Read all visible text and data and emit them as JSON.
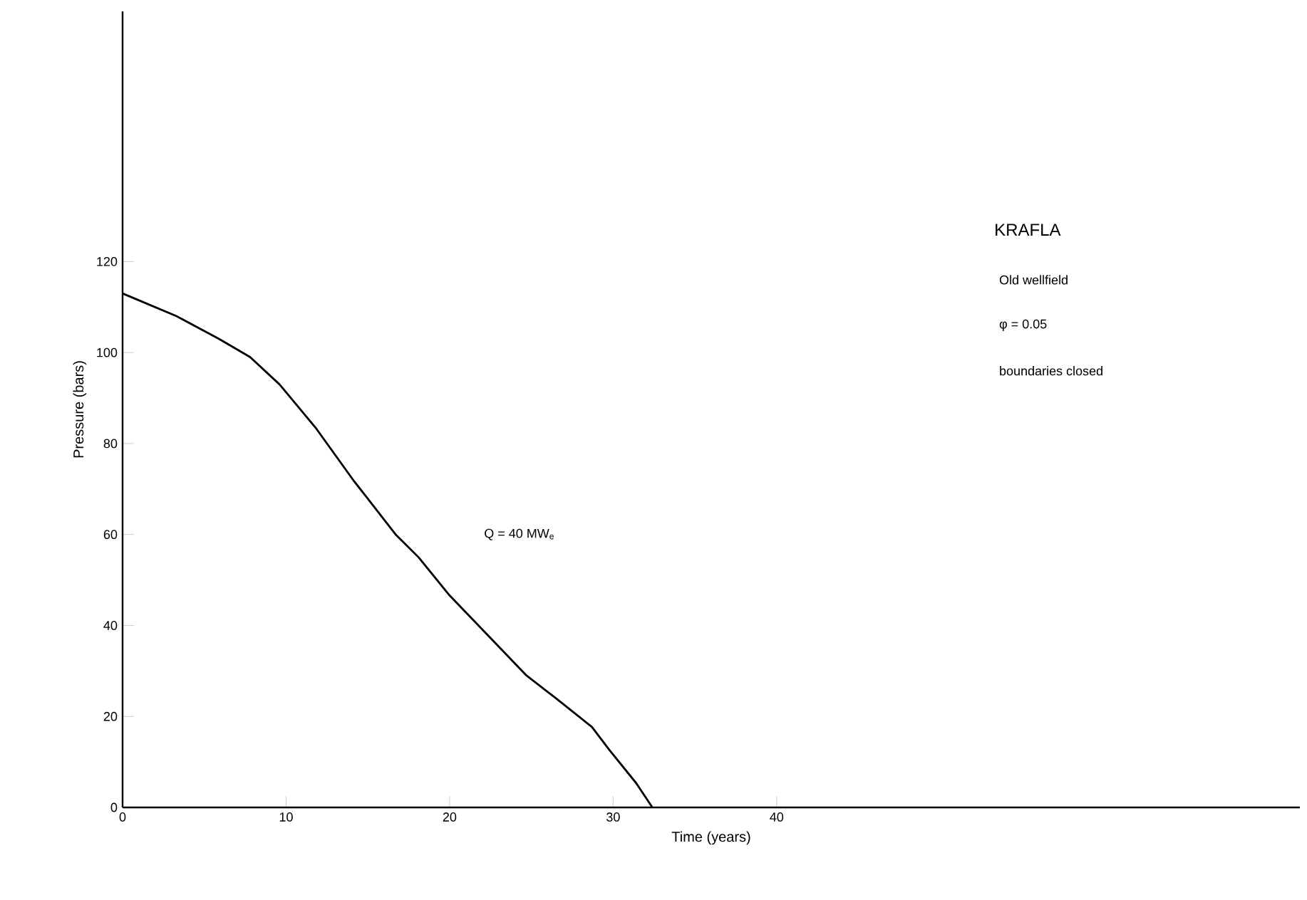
{
  "chart_data": {
    "type": "line",
    "xlabel": "Time (years)",
    "ylabel": "Pressure (bars)",
    "x": [
      0,
      3.3,
      5.9,
      7.8,
      9.6,
      11.8,
      14.1,
      16.7,
      18.1,
      20,
      22.3,
      24.7,
      26.5,
      28.7,
      29.8,
      31.4,
      32.4
    ],
    "series": [
      {
        "color": "#000000",
        "values": [
          113,
          108,
          103,
          99,
          93,
          83.5,
          72,
          60,
          55,
          46.6,
          38,
          29,
          24,
          17.7,
          12.5,
          5.4,
          0
        ]
      }
    ],
    "xlim": [
      0,
      72
    ],
    "ylim": [
      0,
      175
    ],
    "xticks": [
      0,
      10,
      20,
      30,
      40
    ],
    "yticks": [
      0,
      20,
      40,
      60,
      80,
      100,
      120
    ],
    "grid": false,
    "marker": "none",
    "line_style": "solid",
    "annotations": [
      "KRAFLA",
      "Old wellfield",
      "φ = 0.05",
      "boundaries closed",
      "Q = 40 MW$_{e}$"
    ]
  }
}
